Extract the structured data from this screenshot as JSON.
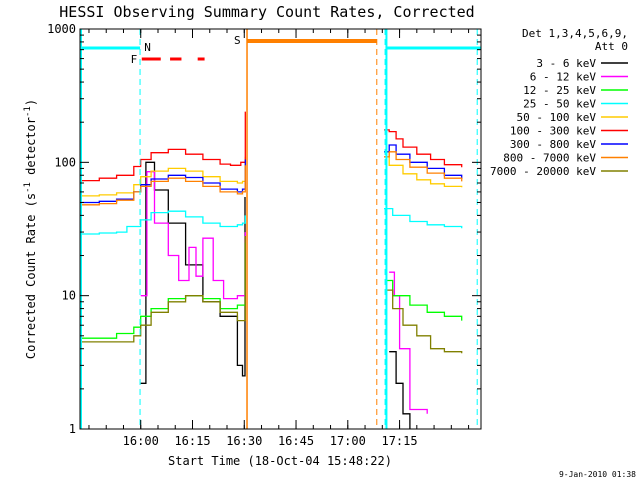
{
  "chart_data": {
    "type": "line",
    "title": "HESSI Observing Summary Count Rates, Corrected",
    "xlabel": "Start Time (18-Oct-04 15:48:22)",
    "ylabel": "Corrected Count Rate (s",
    "ylabel_sup1": "-1",
    "ylabel_mid": " detector",
    "ylabel_sup2": "-1",
    "ylabel_end": ")",
    "footer": "9-Jan-2010 01:38",
    "yscale": "log",
    "ylim": [
      1,
      1000
    ],
    "xlim_min": [
      -5.6,
      110.6
    ],
    "ytick_values": [
      1,
      10,
      100,
      1000
    ],
    "ytick_labels": [
      "1",
      "10",
      "100",
      "1000"
    ],
    "xtick_values": [
      12,
      27,
      42,
      57,
      72,
      87
    ],
    "xtick_labels": [
      "16:00",
      "16:15",
      "16:30",
      "16:45",
      "17:00",
      "17:15"
    ],
    "legend_header": [
      "Det 1,3,4,5,6,9,",
      "Att 0"
    ],
    "series": [
      {
        "name": "3 - 6 keV",
        "color": "#000000",
        "pts": [
          [
            12,
            2.2
          ],
          [
            13.5,
            100
          ],
          [
            16,
            62
          ],
          [
            20,
            35
          ],
          [
            25,
            17
          ],
          [
            30,
            9
          ],
          [
            35,
            7
          ],
          [
            40,
            3
          ],
          [
            41.5,
            2.5
          ],
          [
            42.2,
            55
          ],
          [
            82,
            null
          ],
          [
            84,
            3.8
          ],
          [
            86,
            2.2
          ],
          [
            88,
            1.3
          ],
          [
            90,
            1.0
          ]
        ]
      },
      {
        "name": "6 - 12 keV",
        "color": "#ff00ff",
        "pts": [
          [
            12,
            10
          ],
          [
            13.8,
            85
          ],
          [
            16,
            35
          ],
          [
            20,
            20
          ],
          [
            23,
            13
          ],
          [
            26,
            23
          ],
          [
            28,
            14
          ],
          [
            30,
            27
          ],
          [
            33,
            13
          ],
          [
            36,
            9.5
          ],
          [
            40,
            10
          ],
          [
            41.5,
            10
          ],
          [
            42.3,
            30
          ],
          [
            82,
            null
          ],
          [
            84,
            15
          ],
          [
            85.5,
            10
          ],
          [
            87,
            4
          ],
          [
            90,
            1.4
          ],
          [
            95,
            1.3
          ]
        ]
      },
      {
        "name": "12 - 25 keV",
        "color": "#00ff00",
        "pts": [
          [
            -5.5,
            4.8
          ],
          [
            5,
            5.2
          ],
          [
            10,
            5.8
          ],
          [
            12,
            7
          ],
          [
            15,
            8
          ],
          [
            20,
            9.5
          ],
          [
            25,
            10
          ],
          [
            30,
            9.5
          ],
          [
            35,
            8
          ],
          [
            40,
            8.5
          ],
          [
            41.5,
            8.5
          ],
          [
            42.3,
            25
          ],
          [
            82,
            null
          ],
          [
            83,
            13
          ],
          [
            85,
            10
          ],
          [
            90,
            8.5
          ],
          [
            95,
            7.5
          ],
          [
            100,
            7
          ],
          [
            105,
            6.5
          ]
        ]
      },
      {
        "name": "25 - 50 keV",
        "color": "#00ffff",
        "pts": [
          [
            -5.5,
            29
          ],
          [
            0,
            29.5
          ],
          [
            5,
            30
          ],
          [
            8,
            33
          ],
          [
            12,
            37
          ],
          [
            15,
            42
          ],
          [
            20,
            43
          ],
          [
            25,
            39
          ],
          [
            30,
            35
          ],
          [
            35,
            33
          ],
          [
            40,
            34
          ],
          [
            41.5,
            35
          ],
          [
            42.3,
            40
          ],
          [
            82,
            null
          ],
          [
            82.5,
            45
          ],
          [
            85,
            40
          ],
          [
            90,
            36
          ],
          [
            95,
            34
          ],
          [
            100,
            33
          ],
          [
            105,
            32
          ]
        ]
      },
      {
        "name": "50 - 100 keV",
        "color": "#ffcc00",
        "pts": [
          [
            -5.5,
            56
          ],
          [
            0,
            57
          ],
          [
            5,
            59
          ],
          [
            10,
            68
          ],
          [
            12,
            78
          ],
          [
            15,
            86
          ],
          [
            20,
            90
          ],
          [
            25,
            86
          ],
          [
            30,
            78
          ],
          [
            35,
            72
          ],
          [
            40,
            70
          ],
          [
            41.5,
            72
          ],
          [
            42.3,
            110
          ],
          [
            82,
            null
          ],
          [
            82.5,
            120
          ],
          [
            84,
            95
          ],
          [
            88,
            82
          ],
          [
            92,
            74
          ],
          [
            96,
            69
          ],
          [
            100,
            66
          ],
          [
            105,
            65
          ]
        ]
      },
      {
        "name": "100 - 300 keV",
        "color": "#ff0000",
        "pts": [
          [
            -5.5,
            73
          ],
          [
            0,
            76
          ],
          [
            5,
            80
          ],
          [
            10,
            93
          ],
          [
            12,
            105
          ],
          [
            15,
            118
          ],
          [
            20,
            125
          ],
          [
            25,
            115
          ],
          [
            30,
            105
          ],
          [
            35,
            97
          ],
          [
            38,
            95
          ],
          [
            41,
            100
          ],
          [
            42.3,
            240
          ],
          [
            82,
            null
          ],
          [
            82.5,
            175
          ],
          [
            84,
            170
          ],
          [
            86,
            150
          ],
          [
            88,
            130
          ],
          [
            92,
            115
          ],
          [
            96,
            105
          ],
          [
            100,
            96
          ],
          [
            105,
            92
          ]
        ]
      },
      {
        "name": "300 - 800 keV",
        "color": "#0000ff",
        "pts": [
          [
            -5.5,
            50
          ],
          [
            0,
            51
          ],
          [
            5,
            53
          ],
          [
            10,
            60
          ],
          [
            12,
            68
          ],
          [
            15,
            75
          ],
          [
            20,
            80
          ],
          [
            25,
            77
          ],
          [
            30,
            70
          ],
          [
            35,
            63
          ],
          [
            40,
            60
          ],
          [
            41.5,
            63
          ],
          [
            42.3,
            105
          ],
          [
            82,
            null
          ],
          [
            82.5,
            120
          ],
          [
            84,
            135
          ],
          [
            86,
            115
          ],
          [
            90,
            100
          ],
          [
            95,
            90
          ],
          [
            100,
            80
          ],
          [
            105,
            75
          ]
        ]
      },
      {
        "name": "800 - 7000 keV",
        "color": "#ff8000",
        "pts": [
          [
            -5.5,
            48
          ],
          [
            0,
            49
          ],
          [
            5,
            52
          ],
          [
            10,
            60
          ],
          [
            12,
            66
          ],
          [
            15,
            72
          ],
          [
            20,
            76
          ],
          [
            25,
            72
          ],
          [
            30,
            66
          ],
          [
            35,
            60
          ],
          [
            40,
            58
          ],
          [
            41.5,
            60
          ],
          [
            42.3,
            95
          ],
          [
            82,
            null
          ],
          [
            82.5,
            110
          ],
          [
            84,
            120
          ],
          [
            86,
            105
          ],
          [
            90,
            92
          ],
          [
            95,
            83
          ],
          [
            100,
            76
          ],
          [
            105,
            72
          ]
        ]
      },
      {
        "name": "7000 - 20000 keV",
        "color": "#808000",
        "pts": [
          [
            -5.5,
            4.5
          ],
          [
            5,
            4.5
          ],
          [
            10,
            5
          ],
          [
            12,
            6
          ],
          [
            15,
            7.5
          ],
          [
            20,
            9
          ],
          [
            25,
            10
          ],
          [
            30,
            9
          ],
          [
            35,
            7.5
          ],
          [
            40,
            6.5
          ],
          [
            41.5,
            6.5
          ],
          [
            42.3,
            28
          ],
          [
            82,
            null
          ],
          [
            83,
            11
          ],
          [
            85,
            8
          ],
          [
            88,
            6
          ],
          [
            92,
            5
          ],
          [
            96,
            4
          ],
          [
            100,
            3.8
          ],
          [
            105,
            3.7
          ]
        ]
      }
    ],
    "annotations": {
      "sunlight_color": "#00ffff",
      "sunlight_segments": [
        [
          -5.6,
          11.8
        ],
        [
          83.2,
          110.6
        ]
      ],
      "night_boundaries": [
        11.8,
        82.8,
        109.5
      ],
      "N_label": "N",
      "N_at": 13,
      "saa_color": "#ff8000",
      "saa_start": 42.8,
      "saa_end": 80.4,
      "S_label": "S",
      "S_at": 41.8,
      "flare_color": "#ff0000",
      "F_label": "F",
      "F_at": 11,
      "flare_segments": [
        [
          12.3,
          17.8
        ],
        [
          20.5,
          23.8
        ],
        [
          28.5,
          30.5
        ]
      ]
    }
  }
}
